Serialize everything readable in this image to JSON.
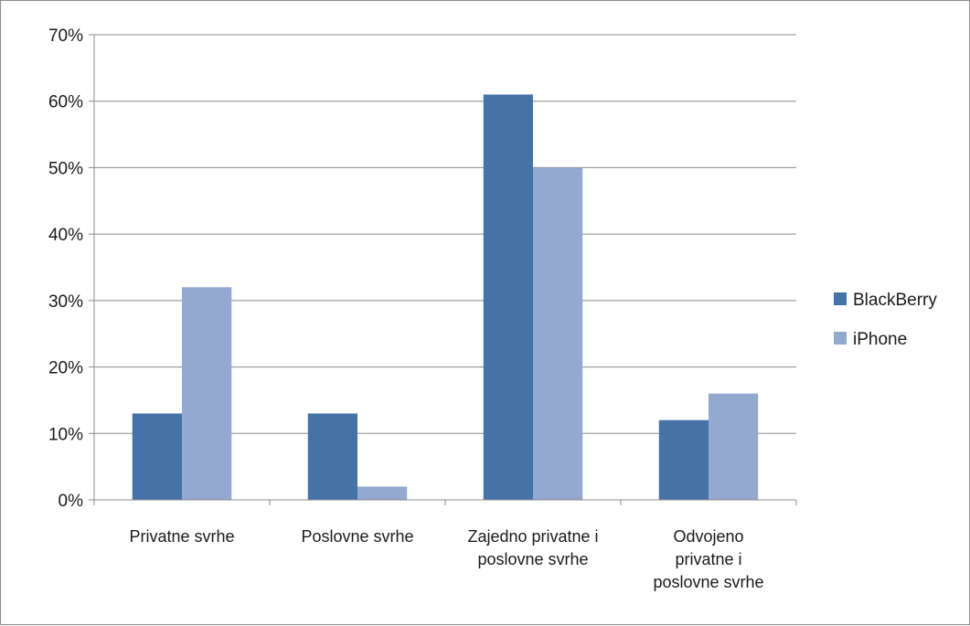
{
  "chart_data": {
    "type": "bar",
    "categories": [
      [
        "Privatne svrhe"
      ],
      [
        "Poslovne svrhe"
      ],
      [
        "Zajedno privatne i",
        "poslovne svrhe"
      ],
      [
        "Odvojeno",
        "privatne i",
        "poslovne svrhe"
      ]
    ],
    "series": [
      {
        "name": "BlackBerry",
        "color": "#4572a7",
        "values": [
          13,
          13,
          61,
          12
        ]
      },
      {
        "name": "iPhone",
        "color": "#93a9d0",
        "values": [
          32,
          2,
          50,
          16
        ]
      }
    ],
    "ylim": [
      0,
      70
    ],
    "yticks": [
      "0%",
      "10%",
      "20%",
      "30%",
      "40%",
      "50%",
      "60%",
      "70%"
    ],
    "grid": true,
    "legend_position": "right"
  }
}
